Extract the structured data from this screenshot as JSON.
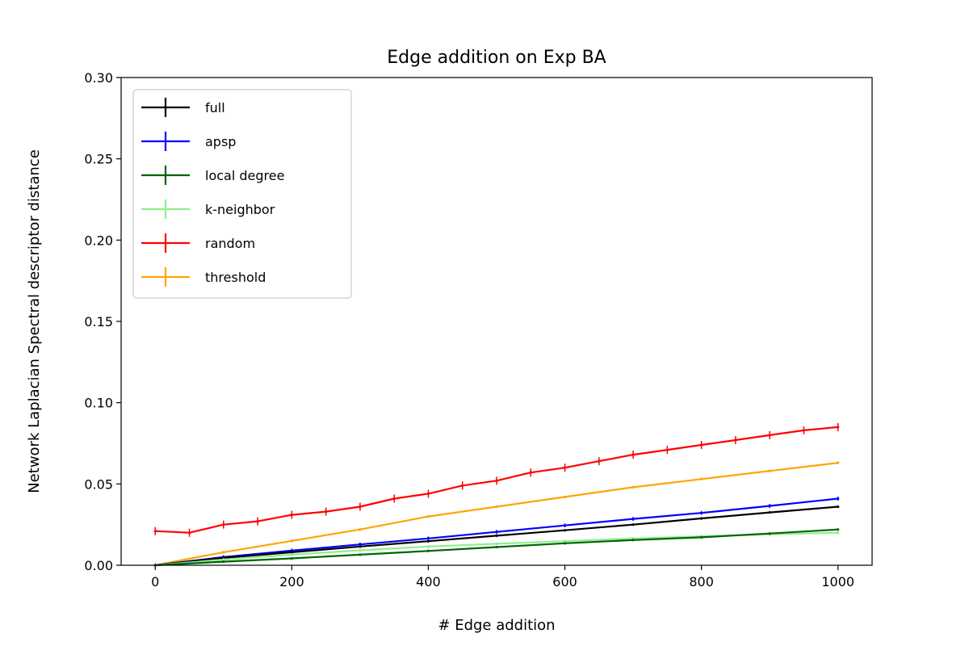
{
  "chart_data": {
    "type": "line",
    "title": "Edge addition on Exp BA",
    "xlabel": "# Edge addition",
    "ylabel": "Network Laplacian Spectral descriptor distance",
    "xlim": [
      -50,
      1050
    ],
    "ylim": [
      0,
      0.3
    ],
    "xticks": [
      0,
      200,
      400,
      600,
      800,
      1000
    ],
    "xtick_labels": [
      "0",
      "200",
      "400",
      "600",
      "800",
      "1000"
    ],
    "yticks": [
      0,
      0.05,
      0.1,
      0.15,
      0.2,
      0.25,
      0.3
    ],
    "ytick_labels": [
      "0.00",
      "0.05",
      "0.10",
      "0.15",
      "0.20",
      "0.25",
      "0.30"
    ],
    "legend_position": "upper-left",
    "grid": false,
    "series": [
      {
        "name": "full",
        "color": "#000000",
        "x": [
          0,
          100,
          200,
          300,
          400,
          500,
          600,
          700,
          800,
          900,
          1000
        ],
        "y": [
          0.0,
          0.0045,
          0.008,
          0.0115,
          0.0148,
          0.0182,
          0.0215,
          0.025,
          0.0288,
          0.0325,
          0.036
        ],
        "yerr": 0.0003
      },
      {
        "name": "apsp",
        "color": "#0000ff",
        "x": [
          0,
          100,
          200,
          300,
          400,
          500,
          600,
          700,
          800,
          900,
          1000
        ],
        "y": [
          0.0,
          0.005,
          0.009,
          0.0128,
          0.0165,
          0.0205,
          0.0245,
          0.0285,
          0.0322,
          0.0365,
          0.041
        ],
        "yerr": 0.0012
      },
      {
        "name": "local degree",
        "color": "#006400",
        "x": [
          0,
          100,
          200,
          300,
          400,
          500,
          600,
          700,
          800,
          900,
          1000
        ],
        "y": [
          0.0,
          0.0022,
          0.0042,
          0.0065,
          0.0088,
          0.0112,
          0.0135,
          0.0155,
          0.0172,
          0.0195,
          0.022
        ],
        "yerr": 0.0006
      },
      {
        "name": "k-neighbor",
        "color": "#90ee90",
        "x": [
          0,
          100,
          200,
          300,
          400,
          500,
          600,
          700,
          800,
          900,
          1000
        ],
        "y": [
          0.0,
          0.0035,
          0.0065,
          0.0092,
          0.0115,
          0.0132,
          0.0148,
          0.0165,
          0.0178,
          0.019,
          0.02
        ],
        "yerr": 0.0009
      },
      {
        "name": "random",
        "color": "#ff0000",
        "x": [
          0,
          50,
          100,
          150,
          200,
          250,
          300,
          350,
          400,
          450,
          500,
          550,
          600,
          650,
          700,
          750,
          800,
          850,
          900,
          950,
          1000
        ],
        "y": [
          0.021,
          0.02,
          0.025,
          0.027,
          0.031,
          0.033,
          0.036,
          0.041,
          0.044,
          0.049,
          0.052,
          0.057,
          0.06,
          0.064,
          0.068,
          0.071,
          0.074,
          0.077,
          0.08,
          0.083,
          0.085
        ],
        "yerr": 0.0025
      },
      {
        "name": "threshold",
        "color": "#ffa500",
        "x": [
          0,
          100,
          200,
          300,
          400,
          500,
          600,
          700,
          800,
          900,
          1000
        ],
        "y": [
          0.0,
          0.008,
          0.015,
          0.022,
          0.03,
          0.036,
          0.042,
          0.048,
          0.053,
          0.058,
          0.063
        ],
        "yerr": 0.0008
      }
    ]
  }
}
